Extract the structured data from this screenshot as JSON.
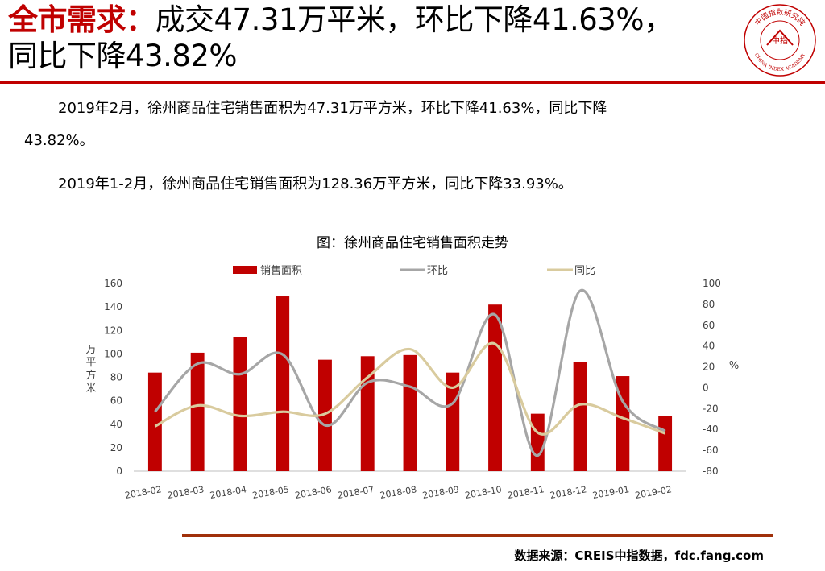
{
  "header": {
    "title_accent": "全市需求：",
    "title_line1_rest": "成交47.31万平米，环比下降41.63%，",
    "title_line2": "同比下降43.82%"
  },
  "logo": {
    "text_top": "中国指数研究院",
    "text_center": "中指",
    "text_bottom": "CHINA INDEX ACADEMY",
    "color": "#c00000"
  },
  "body": {
    "para1_line1": "2019年2月，徐州商品住宅销售面积为47.31万平方米，环比下降41.63%，同比下降",
    "para1_line2": "43.82%。",
    "para2": "2019年1-2月，徐州商品住宅销售面积为128.36万平方米，同比下降33.93%。"
  },
  "chart_title": "图：徐州商品住宅销售面积走势",
  "chart_data": {
    "type": "bar",
    "categories": [
      "2018-02",
      "2018-03",
      "2018-04",
      "2018-05",
      "2018-06",
      "2018-07",
      "2018-08",
      "2018-09",
      "2018-10",
      "2018-11",
      "2018-12",
      "2019-01",
      "2019-02"
    ],
    "series": [
      {
        "name": "销售面积",
        "type": "bar",
        "axis": "left",
        "color": "#c00000",
        "values": [
          84,
          101,
          114,
          149,
          95,
          98,
          99,
          84,
          142,
          49,
          93,
          81,
          47.31
        ]
      },
      {
        "name": "环比",
        "type": "line",
        "axis": "right",
        "color": "#a6a6a6",
        "values": [
          -23,
          23,
          13,
          32,
          -36,
          5,
          1,
          -15,
          70,
          -65,
          93,
          -13,
          -41.63
        ]
      },
      {
        "name": "同比",
        "type": "line",
        "axis": "right",
        "color": "#d9cb9e",
        "values": [
          -37,
          -17,
          -27,
          -23,
          -25,
          10,
          37,
          0,
          42,
          -43,
          -16,
          -29,
          -43.82
        ]
      }
    ],
    "ylabel": "万平方米",
    "ylim": [
      0,
      160
    ],
    "yticks": [
      0,
      20,
      40,
      60,
      80,
      100,
      120,
      140,
      160
    ],
    "y2label": "%",
    "y2lim": [
      -80,
      100
    ],
    "y2ticks": [
      -80,
      -60,
      -40,
      -20,
      0,
      20,
      40,
      60,
      80,
      100
    ],
    "legend": "top",
    "grid": false
  },
  "footer": {
    "source": "数据来源：CREIS中指数据，fdc.fang.com"
  }
}
